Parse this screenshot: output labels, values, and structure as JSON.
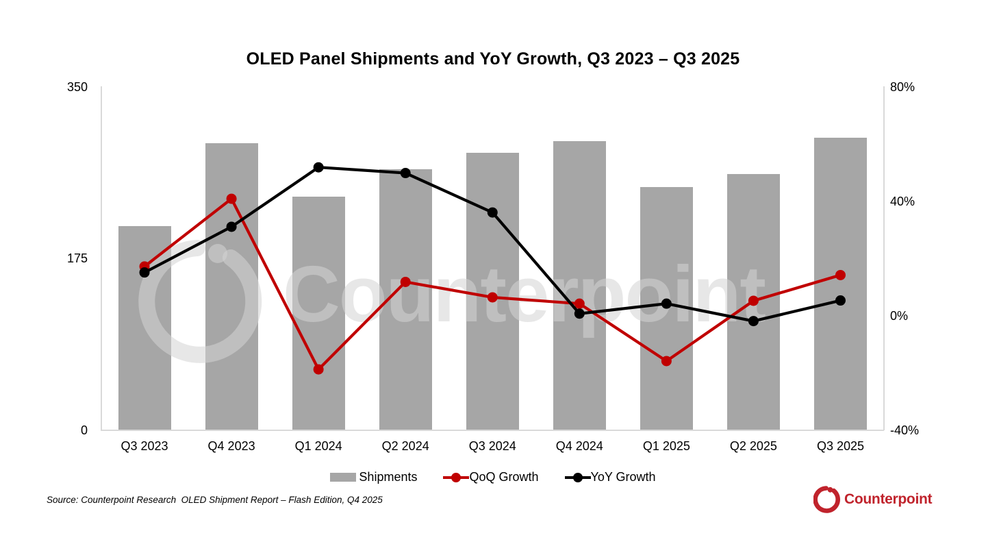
{
  "title": "OLED Panel Shipments and YoY Growth, Q3 2023 – Q3 2025",
  "chart_data": {
    "type": "bar",
    "title": "OLED Panel Shipments and YoY Growth, Q3 2023 – Q3 2025",
    "categories": [
      "Q3 2023",
      "Q4 2023",
      "Q1 2024",
      "Q2 2024",
      "Q3 2024",
      "Q4 2024",
      "Q1 2025",
      "Q2 2025",
      "Q3 2025"
    ],
    "series": [
      {
        "name": "Shipments",
        "type": "bar",
        "axis": "left",
        "color": "#a6a6a6",
        "values": [
          208,
          293,
          238,
          266,
          283,
          295,
          248,
          261,
          298
        ]
      },
      {
        "name": "QoQ Growth",
        "type": "line",
        "axis": "right",
        "color": "#c00000",
        "values": [
          17.2,
          40.9,
          -18.8,
          11.8,
          6.4,
          4.2,
          -15.9,
          5.2,
          14.2
        ]
      },
      {
        "name": "YoY Growth",
        "type": "line",
        "axis": "right",
        "color": "#000000",
        "values": [
          15.1,
          31.1,
          51.9,
          49.9,
          36.1,
          0.7,
          4.2,
          -1.9,
          5.3
        ]
      }
    ],
    "left_axis": {
      "min": 0,
      "max": 350,
      "ticks": [
        {
          "value": 350,
          "label": "350"
        },
        {
          "value": 175,
          "label": "175"
        },
        {
          "value": 0,
          "label": "0"
        }
      ]
    },
    "right_axis": {
      "min": -40,
      "max": 80,
      "ticks": [
        {
          "value": 80,
          "label": "80%"
        },
        {
          "value": 40,
          "label": "40%"
        },
        {
          "value": 0,
          "label": "0%"
        },
        {
          "value": -40,
          "label": "-40%"
        }
      ]
    },
    "grid": false,
    "legend_position": "bottom",
    "axis_line_color": "#d9d9d9"
  },
  "legend": {
    "items": [
      {
        "label": "Shipments",
        "marker": "rect",
        "color": "#a6a6a6"
      },
      {
        "label": "QoQ Growth",
        "marker": "line-dot",
        "color": "#c00000"
      },
      {
        "label": "YoY Growth",
        "marker": "line-dot",
        "color": "#000000"
      }
    ]
  },
  "source_note": "Source: Counterpoint Research  OLED Shipment Report – Flash Edition, Q4 2025",
  "watermark": {
    "text": "Counterpoint"
  },
  "branding": {
    "logo_text": "Counterpoint",
    "logo_color": "#c0232c"
  }
}
